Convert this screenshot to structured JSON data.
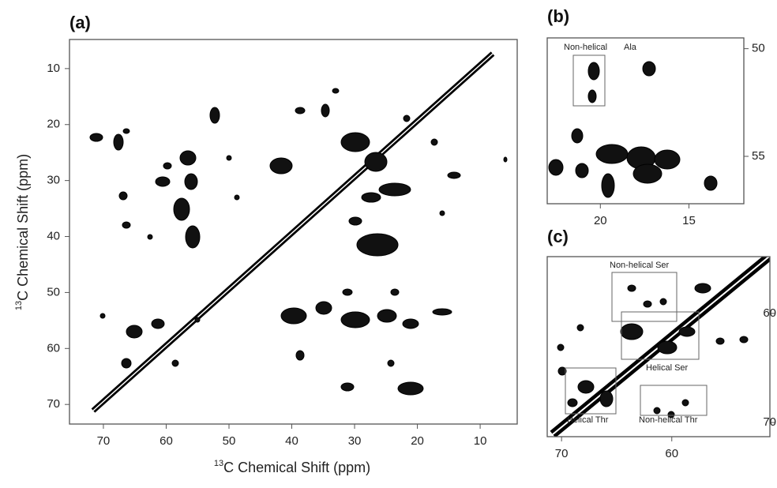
{
  "chart_data": [
    {
      "type": "contour",
      "title": "(a)",
      "x_label_sup": "13",
      "x_label": "C Chemical Shift (ppm)",
      "y_label_sup": "13",
      "y_label": "C Chemical Shift (ppm)",
      "xlim": [
        75.4,
        4.1
      ],
      "ylim": [
        4.8,
        73.5
      ],
      "xticks": [
        70,
        60,
        50,
        40,
        30,
        20,
        10
      ],
      "yticks": [
        10,
        20,
        30,
        40,
        50,
        60,
        70
      ]
    },
    {
      "type": "contour",
      "title": "(b)",
      "xlim": [
        23,
        11.9
      ],
      "ylim": [
        49.5,
        57.2
      ],
      "xticks": [
        20,
        15
      ],
      "yticks": [
        50,
        55
      ],
      "annotations": [
        "Non-helical",
        "Ala"
      ]
    },
    {
      "type": "contour",
      "title": "(c)",
      "xlim": [
        71.3,
        51.1
      ],
      "ylim": [
        54.8,
        71.3
      ],
      "xticks": [
        70,
        60
      ],
      "yticks": [
        60,
        70
      ],
      "annotations": [
        "Non-helical Ser",
        "Helical Ser",
        "Helical Thr",
        "Non-helical  Thr"
      ]
    }
  ]
}
